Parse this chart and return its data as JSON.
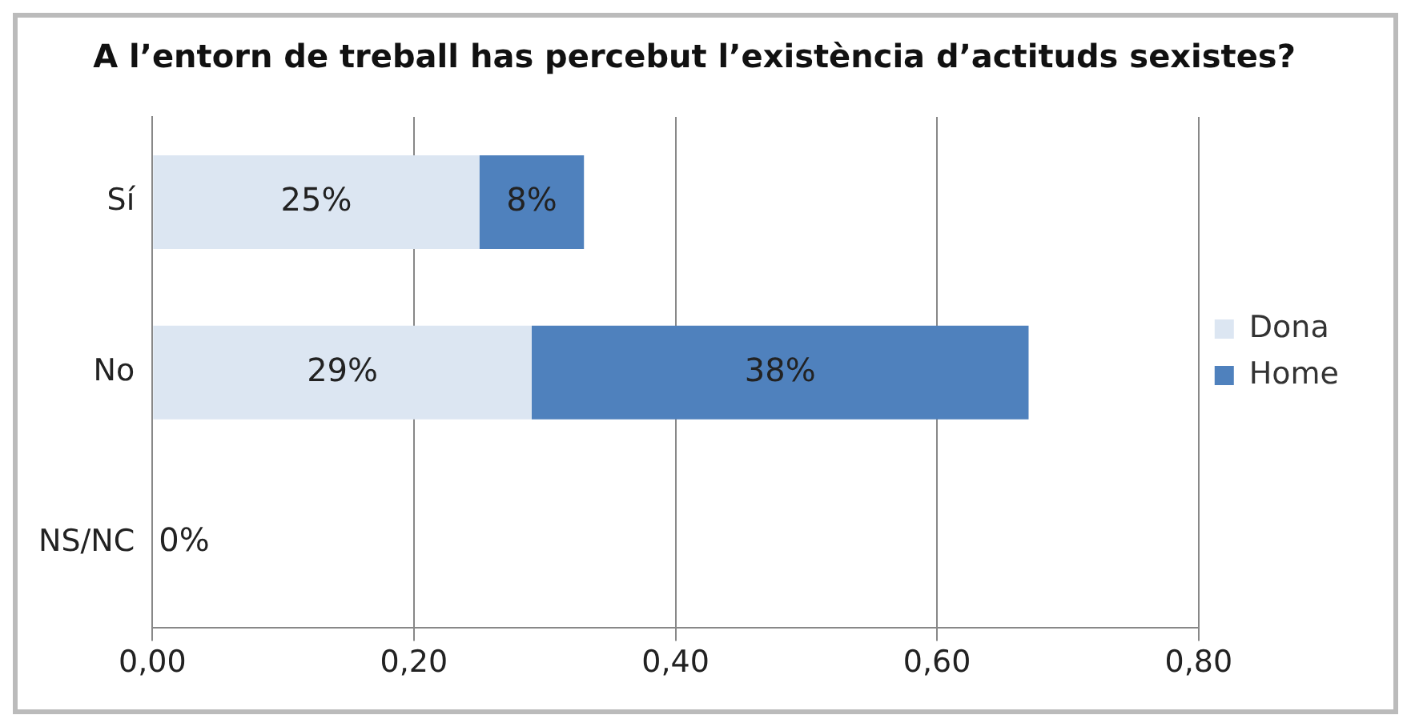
{
  "chart_data": {
    "type": "bar",
    "orientation": "horizontal",
    "stacked": true,
    "title": "A l’entorn de treball has percebut l’existència d’actituds sexistes?",
    "categories": [
      "Sí",
      "No",
      "NS/NC"
    ],
    "series": [
      {
        "name": "Dona",
        "color": "#dce6f2",
        "values": [
          0.25,
          0.29,
          0
        ],
        "value_labels": [
          "25%",
          "29%",
          "0%"
        ]
      },
      {
        "name": "Home",
        "color": "#4f81bd",
        "values": [
          0.08,
          0.38,
          null
        ],
        "value_labels": [
          "8%",
          "38%",
          null
        ]
      }
    ],
    "xlim": [
      0,
      0.8
    ],
    "xticks": [
      {
        "value": 0,
        "label": "0,00"
      },
      {
        "value": 0.2,
        "label": "0,20"
      },
      {
        "value": 0.4,
        "label": "0,40"
      },
      {
        "value": 0.6,
        "label": "0,60"
      },
      {
        "value": 0.8,
        "label": "0,80"
      }
    ],
    "grid": "x",
    "legend": "right"
  }
}
